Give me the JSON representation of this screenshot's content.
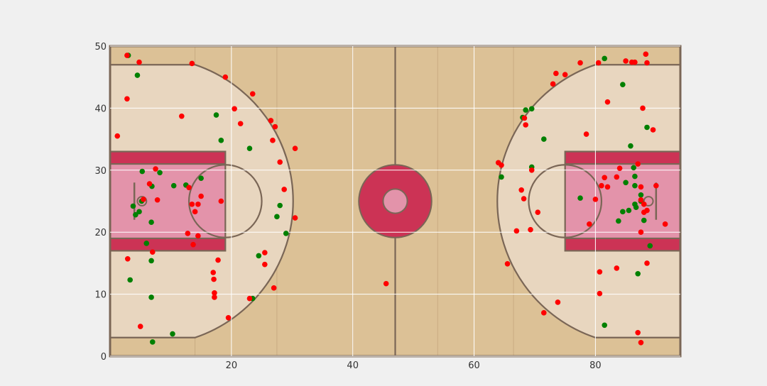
{
  "chart_data": {
    "type": "scatter",
    "title": "",
    "xlabel": "",
    "ylabel": "",
    "xlim": [
      0,
      94
    ],
    "ylim": [
      0,
      50
    ],
    "x_ticks": [
      20,
      40,
      60,
      80
    ],
    "y_ticks": [
      0,
      10,
      20,
      30,
      40,
      50
    ],
    "grid": true,
    "background": "basketball-court",
    "colors": {
      "made": "#008000",
      "missed": "#ff0000",
      "court_floor": "#dcc196",
      "court_light": "#e8d6bf",
      "paint": "#e393aa",
      "accent": "#cc3355",
      "court_line": "#7a6656",
      "figure_bg": "#f0f0f0"
    },
    "series": [
      {
        "color": "#008000",
        "points": [
          [
            3,
            48.5
          ],
          [
            4.5,
            45.3
          ],
          [
            3.3,
            12.3
          ],
          [
            3.8,
            24.2
          ],
          [
            4.2,
            22.8
          ],
          [
            4.8,
            23.3
          ],
          [
            5.2,
            25
          ],
          [
            5.3,
            29.8
          ],
          [
            6,
            18.2
          ],
          [
            6.8,
            15.4
          ],
          [
            6.8,
            9.5
          ],
          [
            6.8,
            21.6
          ],
          [
            6.9,
            27.4
          ],
          [
            7,
            2.3
          ],
          [
            8.2,
            29.6
          ],
          [
            10.5,
            27.5
          ],
          [
            10.3,
            3.6
          ],
          [
            12.5,
            27.6
          ],
          [
            15,
            28.7
          ],
          [
            17.5,
            38.9
          ],
          [
            18.3,
            34.8
          ],
          [
            23,
            33.5
          ],
          [
            23.5,
            9.3
          ],
          [
            24.5,
            16.2
          ],
          [
            27.5,
            22.5
          ],
          [
            28,
            24.3
          ],
          [
            29,
            19.8
          ],
          [
            64.5,
            28.9
          ],
          [
            68,
            38.5
          ],
          [
            68.5,
            39.7
          ],
          [
            69.5,
            39.9
          ],
          [
            69.5,
            30.5
          ],
          [
            71.5,
            35
          ],
          [
            77.5,
            25.5
          ],
          [
            81.5,
            48
          ],
          [
            84.5,
            43.8
          ],
          [
            85,
            28
          ],
          [
            85.5,
            23.5
          ],
          [
            85.8,
            33.9
          ],
          [
            86.3,
            30.4
          ],
          [
            86.5,
            29
          ],
          [
            86.5,
            27.5
          ],
          [
            86.5,
            24.5
          ],
          [
            86.7,
            24
          ],
          [
            87,
            13.3
          ],
          [
            87.5,
            26
          ],
          [
            87.5,
            25
          ],
          [
            88,
            21.9
          ],
          [
            88.5,
            36.9
          ],
          [
            89,
            17.8
          ],
          [
            81.5,
            5
          ],
          [
            83.8,
            21.8
          ],
          [
            84.5,
            23.3
          ]
        ]
      },
      {
        "color": "#ff0000",
        "points": [
          [
            1.2,
            35.5
          ],
          [
            2.8,
            48.5
          ],
          [
            2.8,
            41.5
          ],
          [
            2.9,
            15.7
          ],
          [
            4.8,
            47.4
          ],
          [
            5,
            4.8
          ],
          [
            5.5,
            25.3
          ],
          [
            6.5,
            27.8
          ],
          [
            7,
            16.8
          ],
          [
            7.5,
            30.2
          ],
          [
            7.8,
            25.2
          ],
          [
            11.8,
            38.7
          ],
          [
            12.8,
            19.8
          ],
          [
            13,
            27.2
          ],
          [
            13.5,
            24.5
          ],
          [
            13.5,
            47.2
          ],
          [
            13.7,
            18
          ],
          [
            14,
            23.3
          ],
          [
            14.5,
            24.5
          ],
          [
            14.5,
            19.4
          ],
          [
            15,
            25.8
          ],
          [
            17,
            13.5
          ],
          [
            17.1,
            12.4
          ],
          [
            17.2,
            10.2
          ],
          [
            17.2,
            9.5
          ],
          [
            17.8,
            15.5
          ],
          [
            18.3,
            25
          ],
          [
            19,
            45
          ],
          [
            19.5,
            6.2
          ],
          [
            20.5,
            39.9
          ],
          [
            21.5,
            37.5
          ],
          [
            23,
            9.3
          ],
          [
            23.5,
            42.3
          ],
          [
            25.5,
            16.7
          ],
          [
            25.5,
            14.8
          ],
          [
            26.5,
            38
          ],
          [
            26.8,
            34.8
          ],
          [
            27,
            11
          ],
          [
            27.2,
            37
          ],
          [
            28,
            31.3
          ],
          [
            28.7,
            26.9
          ],
          [
            30.5,
            33.5
          ],
          [
            30.5,
            22.3
          ],
          [
            45.5,
            11.7
          ],
          [
            64,
            31.2
          ],
          [
            64.5,
            30.8
          ],
          [
            65.5,
            14.9
          ],
          [
            67,
            20.2
          ],
          [
            67.8,
            26.8
          ],
          [
            68.2,
            25.4
          ],
          [
            68.3,
            38.4
          ],
          [
            68.5,
            37.3
          ],
          [
            69.3,
            20.4
          ],
          [
            69.5,
            30
          ],
          [
            70.5,
            23.2
          ],
          [
            71.5,
            7
          ],
          [
            73,
            43.9
          ],
          [
            73.5,
            45.6
          ],
          [
            73.8,
            8.7
          ],
          [
            75,
            45.4
          ],
          [
            77.5,
            47.3
          ],
          [
            78.5,
            35.8
          ],
          [
            79,
            21.3
          ],
          [
            80,
            25.3
          ],
          [
            80.5,
            47.3
          ],
          [
            80.7,
            13.6
          ],
          [
            80.7,
            10.1
          ],
          [
            81,
            27.5
          ],
          [
            81.5,
            28.8
          ],
          [
            82,
            27.3
          ],
          [
            82,
            41
          ],
          [
            83.5,
            14.2
          ],
          [
            83.5,
            28.9
          ],
          [
            84,
            30.3
          ],
          [
            85,
            47.6
          ],
          [
            86,
            47.4
          ],
          [
            86.5,
            47.4
          ],
          [
            87,
            3.8
          ],
          [
            87.5,
            2.2
          ],
          [
            87.5,
            20
          ],
          [
            87.5,
            25.2
          ],
          [
            87.5,
            27.3
          ],
          [
            87.8,
            40
          ],
          [
            88,
            23.2
          ],
          [
            88.3,
            48.7
          ],
          [
            88.5,
            47.3
          ],
          [
            88.5,
            15
          ],
          [
            88.5,
            23.5
          ],
          [
            89.5,
            36.5
          ],
          [
            90,
            27.5
          ],
          [
            91.5,
            21.3
          ],
          [
            87,
            31
          ],
          [
            88,
            24.5
          ]
        ]
      }
    ]
  }
}
